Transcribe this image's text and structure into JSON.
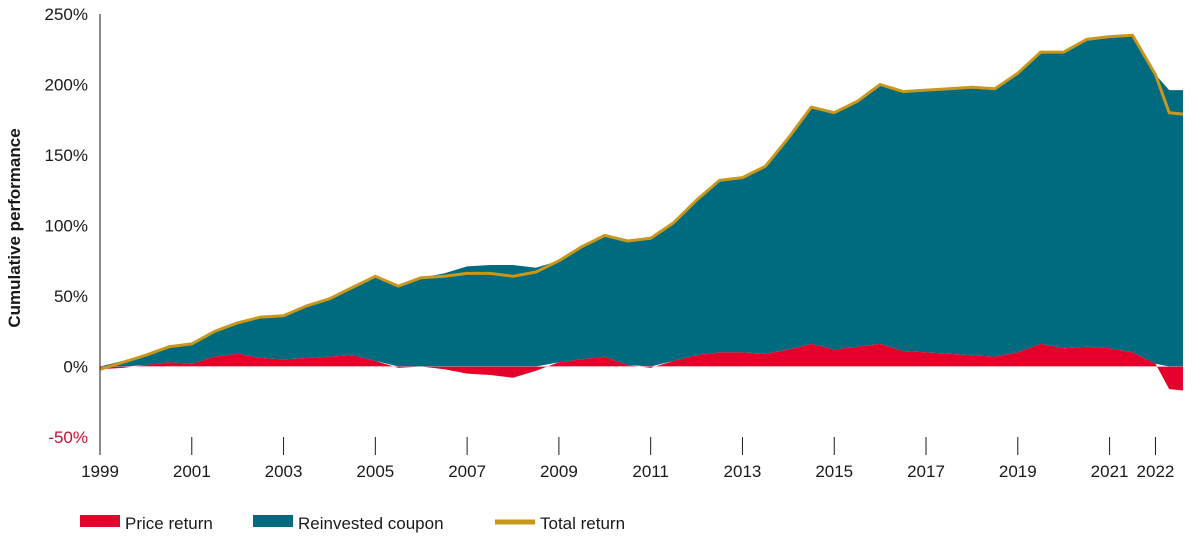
{
  "chart_data": {
    "type": "bar",
    "title": "",
    "ylabel": "Cumulative performance",
    "xlabel": "",
    "ylim": [
      -50,
      250
    ],
    "yticks": [
      -50,
      0,
      50,
      100,
      150,
      200,
      250
    ],
    "ytick_labels": [
      "-50%",
      "0%",
      "50%",
      "100%",
      "150%",
      "200%",
      "250%"
    ],
    "xlim": [
      1999.0,
      2022.6
    ],
    "xticks": [
      1999,
      2001,
      2003,
      2005,
      2007,
      2009,
      2011,
      2013,
      2015,
      2017,
      2019,
      2021,
      2022
    ],
    "xtick_labels": [
      "1999",
      "2001",
      "2003",
      "2005",
      "2007",
      "2009",
      "2011",
      "2013",
      "2015",
      "2017",
      "2019",
      "2021",
      "2022"
    ],
    "legend_position": "bottom-left",
    "colors": {
      "price_return": "#e4002b",
      "reinvested_coupon": "#006a7f",
      "total_return": "#c9971c",
      "negative_tick": "#c8102e"
    },
    "x": [
      1999.0,
      1999.5,
      2000.0,
      2000.5,
      2001.0,
      2001.5,
      2002.0,
      2002.5,
      2003.0,
      2003.5,
      2004.0,
      2004.5,
      2005.0,
      2005.5,
      2006.0,
      2006.5,
      2007.0,
      2007.5,
      2008.0,
      2008.5,
      2009.0,
      2009.5,
      2010.0,
      2010.5,
      2011.0,
      2011.5,
      2012.0,
      2012.5,
      2013.0,
      2013.5,
      2014.0,
      2014.5,
      2015.0,
      2015.5,
      2016.0,
      2016.5,
      2017.0,
      2017.5,
      2018.0,
      2018.5,
      2019.0,
      2019.5,
      2020.0,
      2020.5,
      2021.0,
      2021.5,
      2022.0,
      2022.3,
      2022.6
    ],
    "series": [
      {
        "name": "Price return",
        "values": [
          -2,
          -1,
          1,
          3,
          2,
          7,
          9,
          6,
          5,
          6,
          7,
          8,
          4,
          -1,
          0,
          -2,
          -5,
          -6,
          -8,
          -3,
          3,
          5,
          7,
          1,
          -1,
          4,
          8,
          10,
          10,
          9,
          12,
          16,
          12,
          14,
          16,
          11,
          10,
          9,
          8,
          7,
          10,
          16,
          13,
          14,
          13,
          10,
          2,
          -16,
          -17
        ]
      },
      {
        "name": "Reinvested coupon",
        "values": [
          0,
          4,
          7,
          11,
          14,
          18,
          22,
          29,
          31,
          37,
          41,
          48,
          60,
          58,
          63,
          66,
          71,
          72,
          72,
          70,
          72,
          80,
          86,
          88,
          92,
          98,
          110,
          122,
          124,
          133,
          150,
          168,
          168,
          174,
          184,
          184,
          186,
          188,
          190,
          190,
          198,
          207,
          210,
          218,
          221,
          225,
          205,
          196,
          196
        ]
      },
      {
        "name": "Total return",
        "values": [
          -2,
          3,
          8,
          14,
          16,
          25,
          31,
          35,
          36,
          43,
          48,
          56,
          64,
          57,
          63,
          64,
          66,
          66,
          64,
          67,
          75,
          85,
          93,
          89,
          91,
          102,
          118,
          132,
          134,
          142,
          162,
          184,
          180,
          188,
          200,
          195,
          196,
          197,
          198,
          197,
          208,
          223,
          223,
          232,
          234,
          235,
          207,
          180,
          179
        ]
      }
    ]
  }
}
